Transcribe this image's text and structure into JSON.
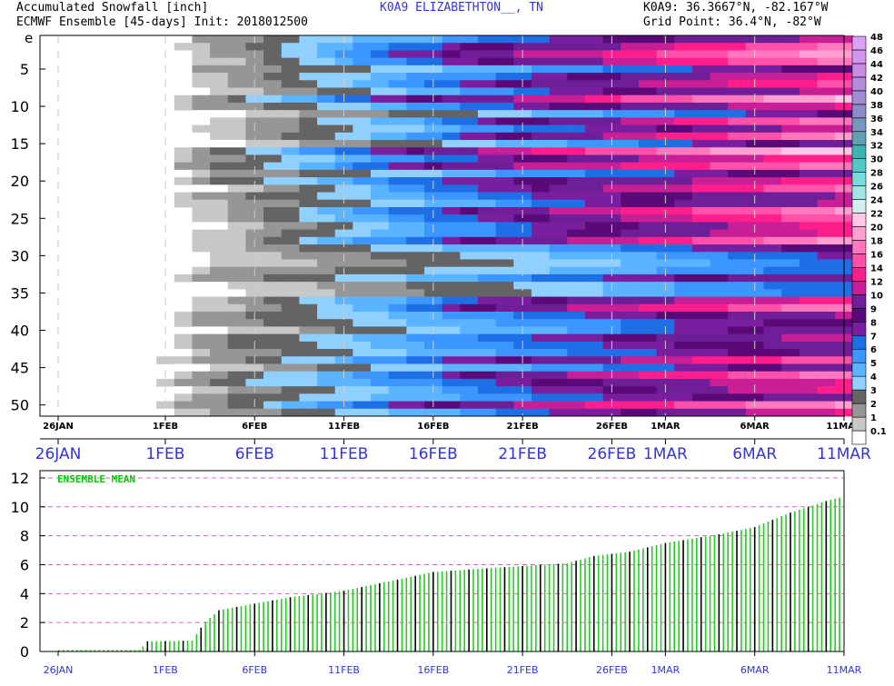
{
  "header": {
    "title_left_1": "Accumulated Snowfall [inch]",
    "title_left_2": "ECMWF Ensemble [45-days] Init: 2018012500",
    "station": "K0A9 ELIZABETHTON__, TN",
    "coords_1": "K0A9: 36.3667°N, -82.167°W",
    "coords_2": "Grid Point: 36.4°N, -82°W"
  },
  "colors": {
    "blue_text": "#3333dd",
    "mean_bar": "#22cc22",
    "mean_bar_dark": "#000000",
    "grid_pink": "#e060c0",
    "legend_label": "#00cc00"
  },
  "chart_data": [
    {
      "type": "heatmap",
      "title": "Accumulated Snowfall [inch]",
      "ylabel_letter": "e",
      "y_ticks": [
        "5",
        "10",
        "15",
        "20",
        "25",
        "30",
        "35",
        "40",
        "45",
        "50"
      ],
      "members": 51,
      "date_ticks": [
        "26JAN",
        "1FEB",
        "6FEB",
        "11FEB",
        "16FEB",
        "21FEB",
        "26FEB",
        "1MAR",
        "6MAR",
        "11MAR"
      ],
      "date_tick_days": [
        0,
        6,
        11,
        16,
        21,
        26,
        31,
        34,
        39,
        44
      ],
      "days": 45,
      "color_scale": {
        "levels": [
          "0.1",
          "1",
          "2",
          "3",
          "4",
          "5",
          "6",
          "7",
          "8",
          "9",
          "10",
          "12",
          "14",
          "16",
          "18",
          "20",
          "22",
          "24",
          "26",
          "28",
          "30",
          "32",
          "34",
          "36",
          "38",
          "40",
          "42",
          "44",
          "46",
          "48"
        ],
        "colors": [
          "#ffffff",
          "#c8c8c8",
          "#969696",
          "#646464",
          "#8fd0ff",
          "#5ab4ff",
          "#3c96ff",
          "#1e6ee6",
          "#7a1ea0",
          "#5a0a78",
          "#6e1e96",
          "#c81e96",
          "#ff1e8c",
          "#ff50aa",
          "#ff78be",
          "#ffa0d2",
          "#ffc8e6",
          "#d2f0f0",
          "#a0e6e6",
          "#78dcdc",
          "#50c8c8",
          "#3cb4b4",
          "#64a0b4",
          "#7896be",
          "#8c8cc8",
          "#a08cd2",
          "#b48cdc",
          "#c88ce6",
          "#d296f0",
          "#dca0f5"
        ]
      }
    },
    {
      "type": "bar",
      "title": "ENSEMBLE MEAN",
      "y_ticks": [
        "0",
        "2",
        "4",
        "6",
        "8",
        "10",
        "12"
      ],
      "ylim": [
        0,
        12.5
      ],
      "date_ticks": [
        "26JAN",
        "1FEB",
        "6FEB",
        "11FEB",
        "16FEB",
        "21FEB",
        "26FEB",
        "1MAR",
        "6MAR",
        "11MAR"
      ],
      "date_tick_days": [
        0,
        6,
        11,
        16,
        21,
        26,
        31,
        34,
        39,
        44
      ],
      "key_points": [
        {
          "day": 0,
          "value": 0.0
        },
        {
          "day": 4.5,
          "value": 0.0
        },
        {
          "day": 5.0,
          "value": 0.7
        },
        {
          "day": 7.5,
          "value": 0.75
        },
        {
          "day": 8.2,
          "value": 2.0
        },
        {
          "day": 9.0,
          "value": 2.85
        },
        {
          "day": 10.5,
          "value": 3.2
        },
        {
          "day": 13.0,
          "value": 3.75
        },
        {
          "day": 16.0,
          "value": 4.2
        },
        {
          "day": 19.5,
          "value": 5.1
        },
        {
          "day": 21.0,
          "value": 5.5
        },
        {
          "day": 24.0,
          "value": 5.75
        },
        {
          "day": 28.5,
          "value": 6.1
        },
        {
          "day": 30.0,
          "value": 6.6
        },
        {
          "day": 32.0,
          "value": 6.9
        },
        {
          "day": 34.0,
          "value": 7.5
        },
        {
          "day": 37.0,
          "value": 8.1
        },
        {
          "day": 39.0,
          "value": 8.6
        },
        {
          "day": 41.0,
          "value": 9.6
        },
        {
          "day": 43.0,
          "value": 10.4
        },
        {
          "day": 45.5,
          "value": 11.2
        }
      ]
    }
  ]
}
